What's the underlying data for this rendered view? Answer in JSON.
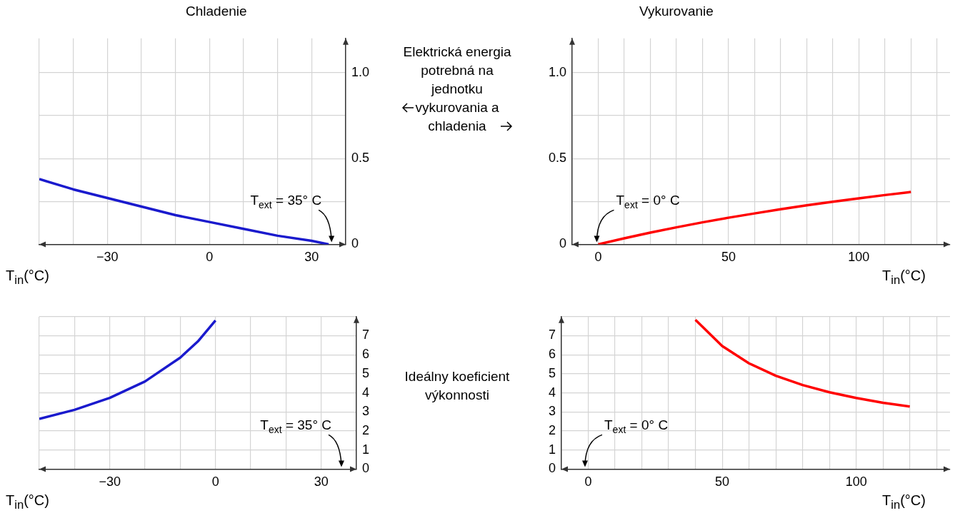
{
  "chart_data": [
    {
      "type": "line",
      "title": "Chladenie",
      "xlabel": "T$_{in}$(°C)",
      "ylabel": "Elektrická energia potrebná na jednotku vykurovania a chladenia",
      "marker": "none",
      "grid": true,
      "series": [
        {
          "color": "#1a1acd",
          "x": [
            -50,
            -40,
            -30,
            -20,
            -10,
            0,
            10,
            20,
            30,
            35
          ],
          "values": [
            0.38,
            0.32,
            0.27,
            0.22,
            0.17,
            0.13,
            0.09,
            0.05,
            0.02,
            0
          ]
        }
      ],
      "xlim": [
        -50,
        40
      ],
      "xticks": [
        {
          "value": -50,
          "label": null
        },
        {
          "value": -40,
          "label": null
        },
        {
          "value": -30,
          "label": "−30"
        },
        {
          "value": -20,
          "label": null
        },
        {
          "value": -10,
          "label": null
        },
        0,
        {
          "value": 10,
          "label": null
        },
        {
          "value": 20,
          "label": null
        },
        30
      ],
      "ylim": [
        0,
        1.2
      ],
      "yticks": [
        0,
        {
          "value": 0.25,
          "label": null
        },
        0.5,
        {
          "value": 0.75,
          "label": null
        },
        {
          "value": 1,
          "label": "1.0"
        }
      ],
      "annotations": [
        {
          "text": "T$_{ext}$ = 35° C",
          "x": 35,
          "y": 0
        }
      ]
    },
    {
      "type": "line",
      "title": "Vykurovanie",
      "xlabel": "T$_{in}$(°C)",
      "marker": "none",
      "grid": true,
      "series": [
        {
          "color": "#ff0000",
          "x": [
            0,
            10,
            20,
            30,
            40,
            50,
            60,
            70,
            80,
            90,
            100,
            110,
            120
          ],
          "values": [
            0,
            0.035,
            0.068,
            0.099,
            0.128,
            0.155,
            0.18,
            0.204,
            0.227,
            0.248,
            0.268,
            0.287,
            0.305
          ]
        }
      ],
      "xlim": [
        -10,
        135
      ],
      "xticks": [
        {
          "value": -10,
          "label": null
        },
        0,
        {
          "value": 10,
          "label": null
        },
        {
          "value": 20,
          "label": null
        },
        {
          "value": 30,
          "label": null
        },
        {
          "value": 40,
          "label": null
        },
        50,
        {
          "value": 60,
          "label": null
        },
        {
          "value": 70,
          "label": null
        },
        {
          "value": 80,
          "label": null
        },
        {
          "value": 90,
          "label": null
        },
        100,
        {
          "value": 110,
          "label": null
        },
        {
          "value": 120,
          "label": null
        },
        {
          "value": 130,
          "label": null
        }
      ],
      "ylim": [
        0,
        1.2
      ],
      "yticks": [
        0,
        {
          "value": 0.25,
          "label": null
        },
        0.5,
        {
          "value": 0.75,
          "label": null
        },
        {
          "value": 1,
          "label": "1.0"
        }
      ],
      "annotations": [
        {
          "text": "T$_{ext}$ = 0° C",
          "x": 0,
          "y": 0
        }
      ]
    },
    {
      "type": "line",
      "xlabel": "T$_{in}$(°C)",
      "ylabel": "Ideálny koeficient výkonnosti",
      "marker": "none",
      "grid": true,
      "series": [
        {
          "color": "#1a1acd",
          "x": [
            -50,
            -40,
            -30,
            -20,
            -10,
            -5,
            0
          ],
          "values": [
            2.63,
            3.11,
            3.74,
            4.6,
            5.85,
            6.7,
            7.8
          ]
        }
      ],
      "xlim": [
        -50,
        40
      ],
      "xticks": [
        {
          "value": -50,
          "label": null
        },
        {
          "value": -40,
          "label": null
        },
        {
          "value": -30,
          "label": "−30"
        },
        {
          "value": -20,
          "label": null
        },
        {
          "value": -10,
          "label": null
        },
        0,
        {
          "value": 10,
          "label": null
        },
        {
          "value": 20,
          "label": null
        },
        30
      ],
      "ylim": [
        0,
        8
      ],
      "yticks": [
        0,
        1,
        2,
        3,
        4,
        5,
        6,
        7,
        {
          "value": 8,
          "label": null
        }
      ],
      "annotations": [
        "T$_{ext}$ = 35° C"
      ]
    },
    {
      "type": "line",
      "xlabel": "T$_{in}$(°C)",
      "marker": "none",
      "grid": true,
      "series": [
        {
          "color": "#ff0000",
          "x": [
            40,
            50,
            60,
            70,
            80,
            90,
            100,
            110,
            120
          ],
          "values": [
            7.83,
            6.46,
            5.55,
            4.9,
            4.41,
            4.03,
            3.73,
            3.48,
            3.28
          ]
        }
      ],
      "xlim": [
        -10,
        135
      ],
      "xticks": [
        {
          "value": -10,
          "label": null
        },
        0,
        {
          "value": 10,
          "label": null
        },
        {
          "value": 20,
          "label": null
        },
        {
          "value": 30,
          "label": null
        },
        {
          "value": 40,
          "label": null
        },
        50,
        {
          "value": 60,
          "label": null
        },
        {
          "value": 70,
          "label": null
        },
        {
          "value": 80,
          "label": null
        },
        {
          "value": 90,
          "label": null
        },
        100,
        {
          "value": 110,
          "label": null
        },
        {
          "value": 120,
          "label": null
        },
        {
          "value": 130,
          "label": null
        }
      ],
      "ylim": [
        0,
        8
      ],
      "yticks": [
        0,
        1,
        2,
        3,
        4,
        5,
        6,
        7,
        {
          "value": 8,
          "label": null
        }
      ],
      "annotations": [
        "T$_{ext}$ = 0° C"
      ]
    }
  ]
}
